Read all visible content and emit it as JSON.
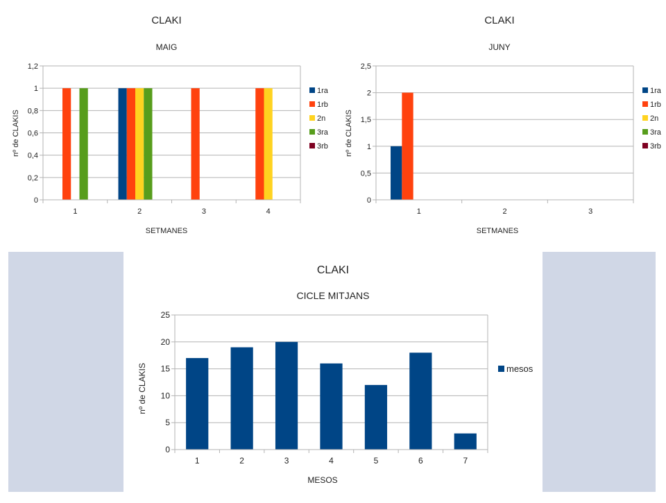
{
  "chart_data": [
    {
      "id": "maig",
      "type": "bar",
      "title": "CLAKI",
      "subtitle": "MAIG",
      "xlabel": "SETMANES",
      "ylabel": "nº de CLAKIS",
      "categories": [
        "1",
        "2",
        "3",
        "4"
      ],
      "ylim": [
        0,
        1.2
      ],
      "yticks": [
        0,
        0.2,
        0.4,
        0.6,
        0.8,
        1,
        1.2
      ],
      "ytick_labels": [
        "0",
        "0,2",
        "0,4",
        "0,6",
        "0,8",
        "1",
        "1,2"
      ],
      "grid": true,
      "legend_position": "right",
      "series": [
        {
          "name": "1ra",
          "color": "#004586",
          "values": [
            0,
            1,
            0,
            0
          ]
        },
        {
          "name": "1rb",
          "color": "#ff420e",
          "values": [
            1,
            1,
            1,
            1
          ]
        },
        {
          "name": "2n",
          "color": "#ffd320",
          "values": [
            0,
            1,
            0,
            1
          ]
        },
        {
          "name": "3ra",
          "color": "#579d1c",
          "values": [
            1,
            1,
            0,
            0
          ]
        },
        {
          "name": "3rb",
          "color": "#7e0021",
          "values": [
            0,
            0,
            0,
            0
          ]
        }
      ]
    },
    {
      "id": "juny",
      "type": "bar",
      "title": "CLAKI",
      "subtitle": "JUNY",
      "xlabel": "SETMANES",
      "ylabel": "nº de CLAKIS",
      "categories": [
        "1",
        "2",
        "3"
      ],
      "ylim": [
        0,
        2.5
      ],
      "yticks": [
        0,
        0.5,
        1,
        1.5,
        2,
        2.5
      ],
      "ytick_labels": [
        "0",
        "0,5",
        "1",
        "1,5",
        "2",
        "2,5"
      ],
      "grid": true,
      "legend_position": "right",
      "series": [
        {
          "name": "1ra",
          "color": "#004586",
          "values": [
            1,
            0,
            0
          ]
        },
        {
          "name": "1rb",
          "color": "#ff420e",
          "values": [
            2,
            0,
            0
          ]
        },
        {
          "name": "2n",
          "color": "#ffd320",
          "values": [
            0,
            0,
            0
          ]
        },
        {
          "name": "3ra",
          "color": "#579d1c",
          "values": [
            0,
            0,
            0
          ]
        },
        {
          "name": "3rb",
          "color": "#7e0021",
          "values": [
            0,
            0,
            0
          ]
        }
      ]
    },
    {
      "id": "cicle",
      "type": "bar",
      "title": "CLAKI",
      "subtitle": "CICLE MITJANS",
      "xlabel": "MESOS",
      "ylabel": "nº de CLAKIS",
      "categories": [
        "1",
        "2",
        "3",
        "4",
        "5",
        "6",
        "7"
      ],
      "ylim": [
        0,
        25
      ],
      "yticks": [
        0,
        5,
        10,
        15,
        20,
        25
      ],
      "ytick_labels": [
        "0",
        "5",
        "10",
        "15",
        "20",
        "25"
      ],
      "grid": true,
      "legend_position": "right",
      "series": [
        {
          "name": "mesos",
          "color": "#004586",
          "values": [
            17,
            19,
            20,
            16,
            12,
            18,
            3
          ]
        }
      ]
    }
  ],
  "colors": {
    "side_panel": "#d0d7e6",
    "grid": "#b3b3b3"
  }
}
